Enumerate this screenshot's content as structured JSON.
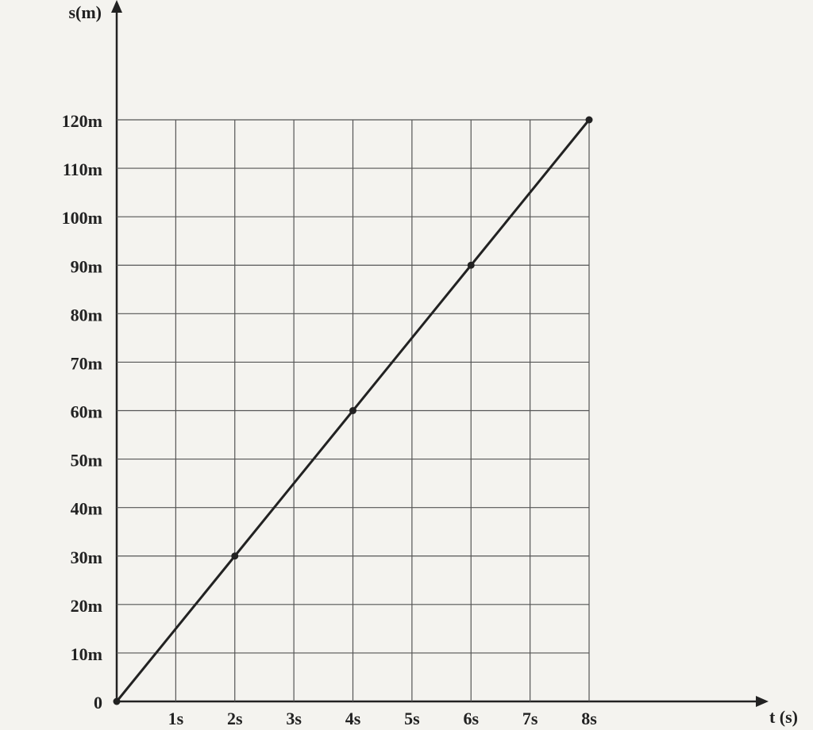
{
  "chart_data": {
    "type": "line",
    "y_label": "s(m)",
    "x_label": "t (s)",
    "x": [
      0,
      2,
      4,
      6,
      8
    ],
    "series": [
      {
        "name": "s",
        "color": "#222222",
        "values": [
          0,
          30,
          60,
          90,
          120
        ]
      }
    ],
    "xlim": [
      0,
      8
    ],
    "ylim": [
      0,
      120
    ],
    "xticks": [
      {
        "value": 1,
        "label": "1s"
      },
      {
        "value": 2,
        "label": "2s"
      },
      {
        "value": 3,
        "label": "3s"
      },
      {
        "value": 4,
        "label": "4s"
      },
      {
        "value": 5,
        "label": "5s"
      },
      {
        "value": 6,
        "label": "6s"
      },
      {
        "value": 7,
        "label": "7s"
      },
      {
        "value": 8,
        "label": "8s"
      }
    ],
    "yticks": [
      0,
      {
        "value": 10,
        "label": "10m"
      },
      {
        "value": 20,
        "label": "20m"
      },
      {
        "value": 30,
        "label": "30m"
      },
      {
        "value": 40,
        "label": "40m"
      },
      {
        "value": 50,
        "label": "50m"
      },
      {
        "value": 60,
        "label": "60m"
      },
      {
        "value": 70,
        "label": "70m"
      },
      {
        "value": 80,
        "label": "80m"
      },
      {
        "value": 90,
        "label": "90m"
      },
      {
        "value": 100,
        "label": "100m"
      },
      {
        "value": 110,
        "label": "110m"
      },
      {
        "value": 120,
        "label": "120m"
      }
    ],
    "grid": true
  }
}
